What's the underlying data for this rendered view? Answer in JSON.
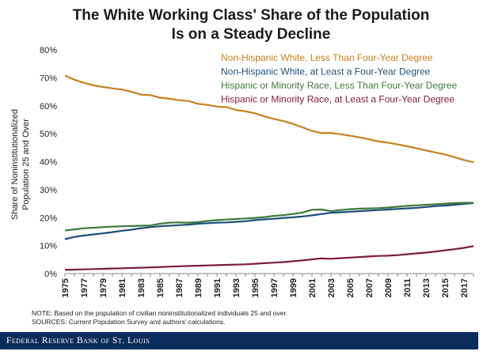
{
  "chart_data": {
    "type": "line",
    "title_line1": "The White Working Class' Share of the Population",
    "title_line2": "Is on a Steady Decline",
    "ylabel_line1": "Share of Noninstitutionalized",
    "ylabel_line2": "Population 25 and Over",
    "xlabel": "",
    "ylim": [
      0,
      80
    ],
    "y_ticks": [
      "0%",
      "10%",
      "20%",
      "30%",
      "40%",
      "50%",
      "60%",
      "70%",
      "80%"
    ],
    "x_tick_labels": [
      "1975",
      "1977",
      "1979",
      "1981",
      "1983",
      "1985",
      "1987",
      "1989",
      "1991",
      "1993",
      "1995",
      "1997",
      "1999",
      "2001",
      "2003",
      "2005",
      "2007",
      "2009",
      "2011",
      "2013",
      "2015",
      "2017"
    ],
    "x": [
      1975,
      1976,
      1977,
      1978,
      1979,
      1980,
      1981,
      1982,
      1983,
      1984,
      1985,
      1986,
      1987,
      1988,
      1989,
      1990,
      1991,
      1992,
      1993,
      1994,
      1995,
      1996,
      1997,
      1998,
      1999,
      2000,
      2001,
      2002,
      2003,
      2004,
      2005,
      2006,
      2007,
      2008,
      2009,
      2010,
      2011,
      2012,
      2013,
      2014,
      2015,
      2016,
      2017,
      2018
    ],
    "grid": false,
    "legend_position": "top-right",
    "series": [
      {
        "name": "Non-Hispanic White, Less Than Four-Year Degree",
        "color": "#c9801e",
        "values": [
          70.8,
          69.3,
          68.2,
          67.3,
          66.7,
          66.2,
          65.8,
          65.0,
          64.0,
          63.8,
          62.9,
          62.5,
          62.0,
          61.7,
          60.7,
          60.3,
          59.7,
          59.5,
          58.5,
          58.0,
          57.3,
          56.2,
          55.3,
          54.5,
          53.5,
          52.3,
          51.0,
          50.2,
          50.3,
          49.8,
          49.3,
          48.7,
          48.0,
          47.2,
          46.8,
          46.2,
          45.5,
          44.8,
          44.0,
          43.3,
          42.6,
          41.6,
          40.6,
          39.8
        ]
      },
      {
        "name": "Non-Hispanic White, at Least a Four-Year Degree",
        "color": "#1f4e79",
        "values": [
          12.3,
          13.1,
          13.6,
          14.0,
          14.4,
          14.8,
          15.3,
          15.7,
          16.2,
          16.6,
          16.9,
          17.1,
          17.3,
          17.5,
          17.8,
          18.0,
          18.2,
          18.3,
          18.5,
          18.7,
          19.1,
          19.4,
          19.6,
          19.9,
          20.1,
          20.4,
          20.8,
          21.3,
          21.7,
          21.9,
          22.1,
          22.3,
          22.5,
          22.7,
          22.9,
          23.1,
          23.3,
          23.5,
          23.8,
          24.1,
          24.3,
          24.6,
          24.9,
          25.2
        ]
      },
      {
        "name": "Hispanic or Minority Race, Less Than Four-Year Degree",
        "color": "#3d7a3a",
        "values": [
          15.4,
          15.8,
          16.2,
          16.4,
          16.6,
          16.8,
          16.9,
          17.0,
          17.1,
          17.2,
          17.8,
          18.2,
          18.3,
          18.2,
          18.4,
          18.8,
          19.1,
          19.3,
          19.5,
          19.7,
          19.9,
          20.2,
          20.6,
          20.9,
          21.3,
          21.8,
          22.8,
          22.9,
          22.3,
          22.7,
          23.0,
          23.2,
          23.3,
          23.4,
          23.6,
          23.9,
          24.2,
          24.4,
          24.6,
          24.8,
          25.0,
          25.2,
          25.3,
          25.3
        ]
      },
      {
        "name": "Hispanic or Minority Race, at Least a Four-Year Degree",
        "color": "#7b1c3a",
        "values": [
          1.3,
          1.4,
          1.5,
          1.6,
          1.7,
          1.8,
          1.9,
          2.0,
          2.1,
          2.2,
          2.3,
          2.5,
          2.6,
          2.7,
          2.8,
          2.9,
          3.0,
          3.1,
          3.2,
          3.3,
          3.5,
          3.7,
          3.9,
          4.1,
          4.4,
          4.7,
          5.1,
          5.4,
          5.3,
          5.5,
          5.7,
          5.9,
          6.1,
          6.3,
          6.4,
          6.6,
          6.9,
          7.2,
          7.5,
          7.9,
          8.3,
          8.7,
          9.2,
          9.8
        ]
      }
    ]
  },
  "notes": {
    "line1": "NOTE: Based on the population of civilian noninstitutionalized individuals 25 and over.",
    "line2": "SOURCES: Current Population Survey and authors' calculations."
  },
  "footer": {
    "text": "Federal Reserve Bank of St. Louis"
  }
}
